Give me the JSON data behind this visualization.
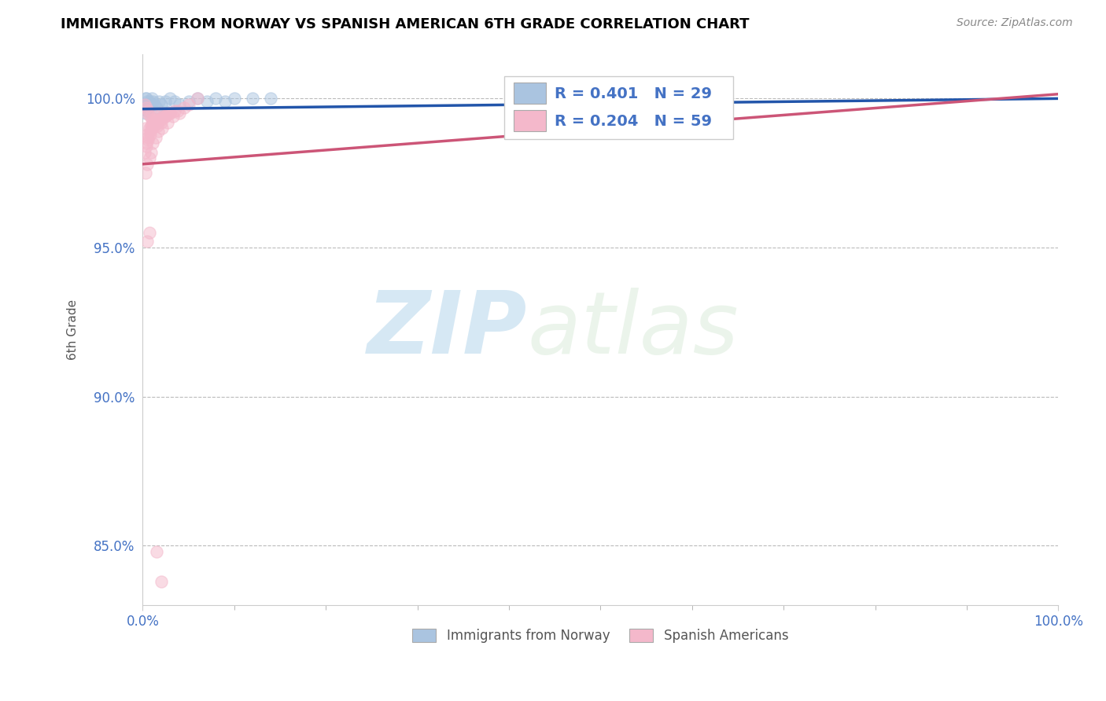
{
  "title": "IMMIGRANTS FROM NORWAY VS SPANISH AMERICAN 6TH GRADE CORRELATION CHART",
  "source": "Source: ZipAtlas.com",
  "ylabel": "6th Grade",
  "xlim": [
    0.0,
    100.0
  ],
  "ylim": [
    83.0,
    101.5
  ],
  "yticks": [
    85.0,
    90.0,
    95.0,
    100.0
  ],
  "xticks": [
    0.0,
    100.0
  ],
  "xtick_labels": [
    "0.0%",
    "100.0%"
  ],
  "ytick_labels": [
    "85.0%",
    "90.0%",
    "95.0%",
    "100.0%"
  ],
  "blue_label": "Immigrants from Norway",
  "pink_label": "Spanish Americans",
  "R_blue": 0.401,
  "N_blue": 29,
  "R_pink": 0.204,
  "N_pink": 59,
  "blue_color": "#aac4e0",
  "pink_color": "#f4b8cb",
  "blue_line_color": "#2255aa",
  "pink_line_color": "#cc5577",
  "watermark_zip": "ZIP",
  "watermark_atlas": "atlas",
  "blue_x": [
    0.3,
    0.5,
    0.7,
    0.4,
    0.8,
    0.6,
    1.0,
    0.2,
    0.3,
    0.5,
    0.6,
    0.9,
    1.1,
    1.3,
    1.5,
    1.8,
    2.0,
    2.5,
    3.0,
    3.5,
    4.0,
    5.0,
    6.0,
    7.0,
    8.0,
    9.0,
    10.0,
    12.0,
    14.0
  ],
  "blue_y": [
    100.0,
    99.9,
    99.9,
    100.0,
    99.8,
    99.7,
    100.0,
    99.8,
    99.5,
    99.6,
    99.7,
    99.8,
    99.9,
    99.8,
    99.7,
    99.9,
    99.8,
    99.9,
    100.0,
    99.9,
    99.8,
    99.9,
    100.0,
    99.9,
    100.0,
    99.9,
    100.0,
    100.0,
    100.0
  ],
  "pink_x": [
    0.2,
    0.4,
    0.5,
    0.6,
    0.8,
    1.0,
    1.2,
    1.5,
    1.8,
    2.0,
    0.3,
    0.5,
    0.7,
    0.9,
    1.1,
    1.3,
    1.6,
    2.0,
    2.5,
    3.0,
    0.4,
    0.6,
    0.8,
    1.0,
    1.2,
    1.5,
    1.8,
    2.2,
    2.8,
    3.5,
    0.2,
    0.4,
    0.6,
    0.8,
    1.0,
    1.3,
    1.6,
    2.0,
    2.5,
    3.0,
    3.8,
    4.5,
    5.0,
    6.0,
    0.3,
    0.5,
    0.7,
    0.9,
    1.1,
    1.4,
    1.7,
    2.1,
    2.7,
    3.3,
    4.0,
    0.5,
    0.7,
    1.5,
    2.0
  ],
  "pink_y": [
    99.8,
    99.7,
    99.5,
    99.6,
    99.4,
    99.3,
    99.2,
    99.4,
    99.3,
    99.5,
    99.0,
    98.8,
    99.0,
    99.1,
    99.2,
    99.3,
    99.1,
    99.2,
    99.4,
    99.5,
    98.5,
    98.7,
    98.9,
    99.0,
    99.1,
    99.2,
    99.3,
    99.4,
    99.5,
    99.6,
    98.2,
    98.4,
    98.6,
    98.8,
    99.0,
    99.1,
    99.2,
    99.3,
    99.4,
    99.5,
    99.6,
    99.7,
    99.8,
    100.0,
    97.5,
    97.8,
    98.0,
    98.2,
    98.5,
    98.7,
    98.9,
    99.0,
    99.2,
    99.4,
    99.5,
    95.2,
    95.5,
    84.8,
    83.8
  ],
  "trendline_x_start": 0.0,
  "trendline_x_end": 100.0,
  "blue_trend_y_start": 99.65,
  "blue_trend_y_end": 100.0,
  "pink_trend_y_start": 97.8,
  "pink_trend_y_end": 100.15
}
